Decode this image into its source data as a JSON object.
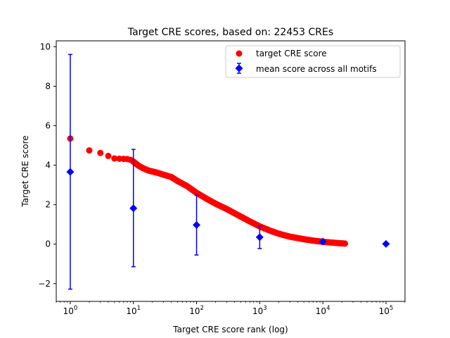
{
  "chart_data": {
    "type": "scatter",
    "title": "Target CRE scores, based on: 22453 CREs",
    "xlabel": "Target CRE score rank (log)",
    "ylabel": "Target CRE score",
    "xscale": "log",
    "xlim": [
      0.6,
      200000
    ],
    "ylim": [
      -2.9,
      10.3
    ],
    "x_ticks": [
      {
        "value": 1,
        "base": "10",
        "exp": "0"
      },
      {
        "value": 10,
        "base": "10",
        "exp": "1"
      },
      {
        "value": 100,
        "base": "10",
        "exp": "2"
      },
      {
        "value": 1000,
        "base": "10",
        "exp": "3"
      },
      {
        "value": 10000,
        "base": "10",
        "exp": "4"
      },
      {
        "value": 100000,
        "base": "10",
        "exp": "5"
      }
    ],
    "y_ticks": [
      -2,
      0,
      2,
      4,
      6,
      8,
      10
    ],
    "legend_position": "top-right",
    "grid": false,
    "series": [
      {
        "name": "target CRE score",
        "marker": "circle",
        "color": "#ff0000",
        "points": [
          [
            1,
            5.35
          ],
          [
            2,
            4.75
          ],
          [
            3,
            4.62
          ],
          [
            4,
            4.47
          ],
          [
            5,
            4.34
          ],
          [
            6,
            4.33
          ],
          [
            7,
            4.32
          ],
          [
            8,
            4.31
          ],
          [
            9,
            4.27
          ],
          [
            10,
            4.18
          ],
          [
            12,
            3.98
          ],
          [
            14,
            3.86
          ],
          [
            17,
            3.74
          ],
          [
            20,
            3.68
          ],
          [
            25,
            3.6
          ],
          [
            30,
            3.52
          ],
          [
            40,
            3.4
          ],
          [
            50,
            3.2
          ],
          [
            70,
            2.95
          ],
          [
            100,
            2.6
          ],
          [
            150,
            2.27
          ],
          [
            200,
            2.05
          ],
          [
            300,
            1.78
          ],
          [
            500,
            1.4
          ],
          [
            700,
            1.15
          ],
          [
            1000,
            0.9
          ],
          [
            1500,
            0.67
          ],
          [
            2000,
            0.53
          ],
          [
            3000,
            0.38
          ],
          [
            5000,
            0.25
          ],
          [
            7000,
            0.18
          ],
          [
            10000,
            0.12
          ],
          [
            15000,
            0.07
          ],
          [
            20000,
            0.04
          ],
          [
            22453,
            0.03
          ]
        ]
      },
      {
        "name": "mean score across all motifs",
        "marker": "diamond",
        "color": "#0000ff",
        "points": [
          {
            "x": 1,
            "y": 3.66,
            "ylow": -2.28,
            "yhigh": 9.61
          },
          {
            "x": 10,
            "y": 1.82,
            "ylow": -1.14,
            "yhigh": 4.8
          },
          {
            "x": 100,
            "y": 0.97,
            "ylow": -0.55,
            "yhigh": 2.48
          },
          {
            "x": 1000,
            "y": 0.35,
            "ylow": -0.22,
            "yhigh": 0.93
          },
          {
            "x": 10000,
            "y": 0.13,
            "ylow": 0.05,
            "yhigh": 0.22
          },
          {
            "x": 100000,
            "y": 0.01,
            "ylow": 0.0,
            "yhigh": 0.02
          }
        ]
      }
    ]
  }
}
